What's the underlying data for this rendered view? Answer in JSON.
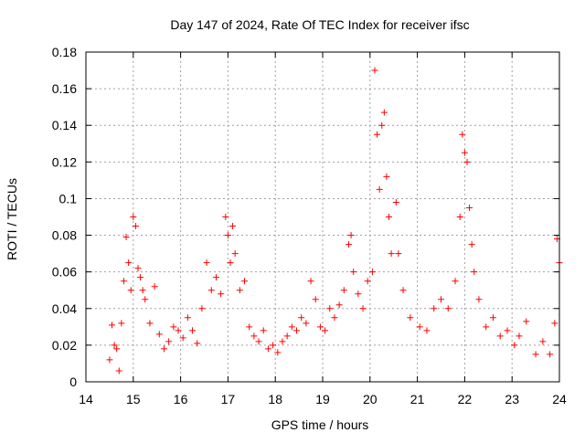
{
  "chart_data": {
    "type": "scatter",
    "title": "Day 147 of 2024, Rate Of TEC Index for receiver ifsc",
    "xlabel": "GPS time / hours",
    "ylabel": "ROTI / TECUs",
    "xlim": [
      14,
      24
    ],
    "ylim": [
      0,
      0.18
    ],
    "xticks": [
      "14",
      "15",
      "16",
      "17",
      "18",
      "19",
      "20",
      "21",
      "22",
      "23",
      "24"
    ],
    "yticks": [
      "0",
      "0.02",
      "0.04",
      "0.06",
      "0.08",
      "0.1",
      "0.12",
      "0.14",
      "0.16",
      "0.18"
    ],
    "grid": true,
    "marker": "plus",
    "color": "#ff0000",
    "series": [
      {
        "name": "",
        "points": [
          [
            14.5,
            0.012
          ],
          [
            14.55,
            0.031
          ],
          [
            14.6,
            0.02
          ],
          [
            14.65,
            0.018
          ],
          [
            14.7,
            0.006
          ],
          [
            14.75,
            0.032
          ],
          [
            14.8,
            0.055
          ],
          [
            14.85,
            0.079
          ],
          [
            14.9,
            0.065
          ],
          [
            14.95,
            0.05
          ],
          [
            15.0,
            0.09
          ],
          [
            15.05,
            0.085
          ],
          [
            15.1,
            0.062
          ],
          [
            15.15,
            0.057
          ],
          [
            15.2,
            0.05
          ],
          [
            15.25,
            0.045
          ],
          [
            15.35,
            0.032
          ],
          [
            15.45,
            0.052
          ],
          [
            15.55,
            0.026
          ],
          [
            15.65,
            0.018
          ],
          [
            15.75,
            0.022
          ],
          [
            15.85,
            0.03
          ],
          [
            15.95,
            0.028
          ],
          [
            16.05,
            0.024
          ],
          [
            16.15,
            0.035
          ],
          [
            16.25,
            0.028
          ],
          [
            16.35,
            0.021
          ],
          [
            16.45,
            0.04
          ],
          [
            16.55,
            0.065
          ],
          [
            16.65,
            0.05
          ],
          [
            16.75,
            0.057
          ],
          [
            16.85,
            0.048
          ],
          [
            16.95,
            0.09
          ],
          [
            17.0,
            0.08
          ],
          [
            17.05,
            0.065
          ],
          [
            17.1,
            0.085
          ],
          [
            17.15,
            0.07
          ],
          [
            17.25,
            0.05
          ],
          [
            17.35,
            0.055
          ],
          [
            17.45,
            0.03
          ],
          [
            17.55,
            0.025
          ],
          [
            17.65,
            0.022
          ],
          [
            17.75,
            0.028
          ],
          [
            17.85,
            0.018
          ],
          [
            17.95,
            0.02
          ],
          [
            18.05,
            0.016
          ],
          [
            18.15,
            0.022
          ],
          [
            18.25,
            0.025
          ],
          [
            18.35,
            0.03
          ],
          [
            18.45,
            0.028
          ],
          [
            18.55,
            0.035
          ],
          [
            18.65,
            0.032
          ],
          [
            18.75,
            0.055
          ],
          [
            18.85,
            0.045
          ],
          [
            18.95,
            0.03
          ],
          [
            19.05,
            0.028
          ],
          [
            19.15,
            0.04
          ],
          [
            19.25,
            0.035
          ],
          [
            19.35,
            0.042
          ],
          [
            19.45,
            0.05
          ],
          [
            19.55,
            0.075
          ],
          [
            19.6,
            0.08
          ],
          [
            19.65,
            0.06
          ],
          [
            19.75,
            0.048
          ],
          [
            19.85,
            0.04
          ],
          [
            19.95,
            0.055
          ],
          [
            20.05,
            0.06
          ],
          [
            20.1,
            0.17
          ],
          [
            20.15,
            0.135
          ],
          [
            20.2,
            0.105
          ],
          [
            20.25,
            0.14
          ],
          [
            20.3,
            0.147
          ],
          [
            20.35,
            0.112
          ],
          [
            20.4,
            0.09
          ],
          [
            20.45,
            0.07
          ],
          [
            20.55,
            0.098
          ],
          [
            20.6,
            0.07
          ],
          [
            20.7,
            0.05
          ],
          [
            20.85,
            0.035
          ],
          [
            21.05,
            0.03
          ],
          [
            21.2,
            0.028
          ],
          [
            21.35,
            0.04
          ],
          [
            21.5,
            0.045
          ],
          [
            21.65,
            0.04
          ],
          [
            21.8,
            0.055
          ],
          [
            21.9,
            0.09
          ],
          [
            21.95,
            0.135
          ],
          [
            22.0,
            0.125
          ],
          [
            22.05,
            0.12
          ],
          [
            22.1,
            0.095
          ],
          [
            22.15,
            0.075
          ],
          [
            22.2,
            0.06
          ],
          [
            22.3,
            0.045
          ],
          [
            22.45,
            0.03
          ],
          [
            22.6,
            0.035
          ],
          [
            22.75,
            0.025
          ],
          [
            22.9,
            0.028
          ],
          [
            23.05,
            0.02
          ],
          [
            23.15,
            0.025
          ],
          [
            23.3,
            0.033
          ],
          [
            23.5,
            0.015
          ],
          [
            23.65,
            0.022
          ],
          [
            23.8,
            0.015
          ],
          [
            23.9,
            0.032
          ],
          [
            23.95,
            0.078
          ],
          [
            24.0,
            0.065
          ]
        ]
      }
    ]
  }
}
